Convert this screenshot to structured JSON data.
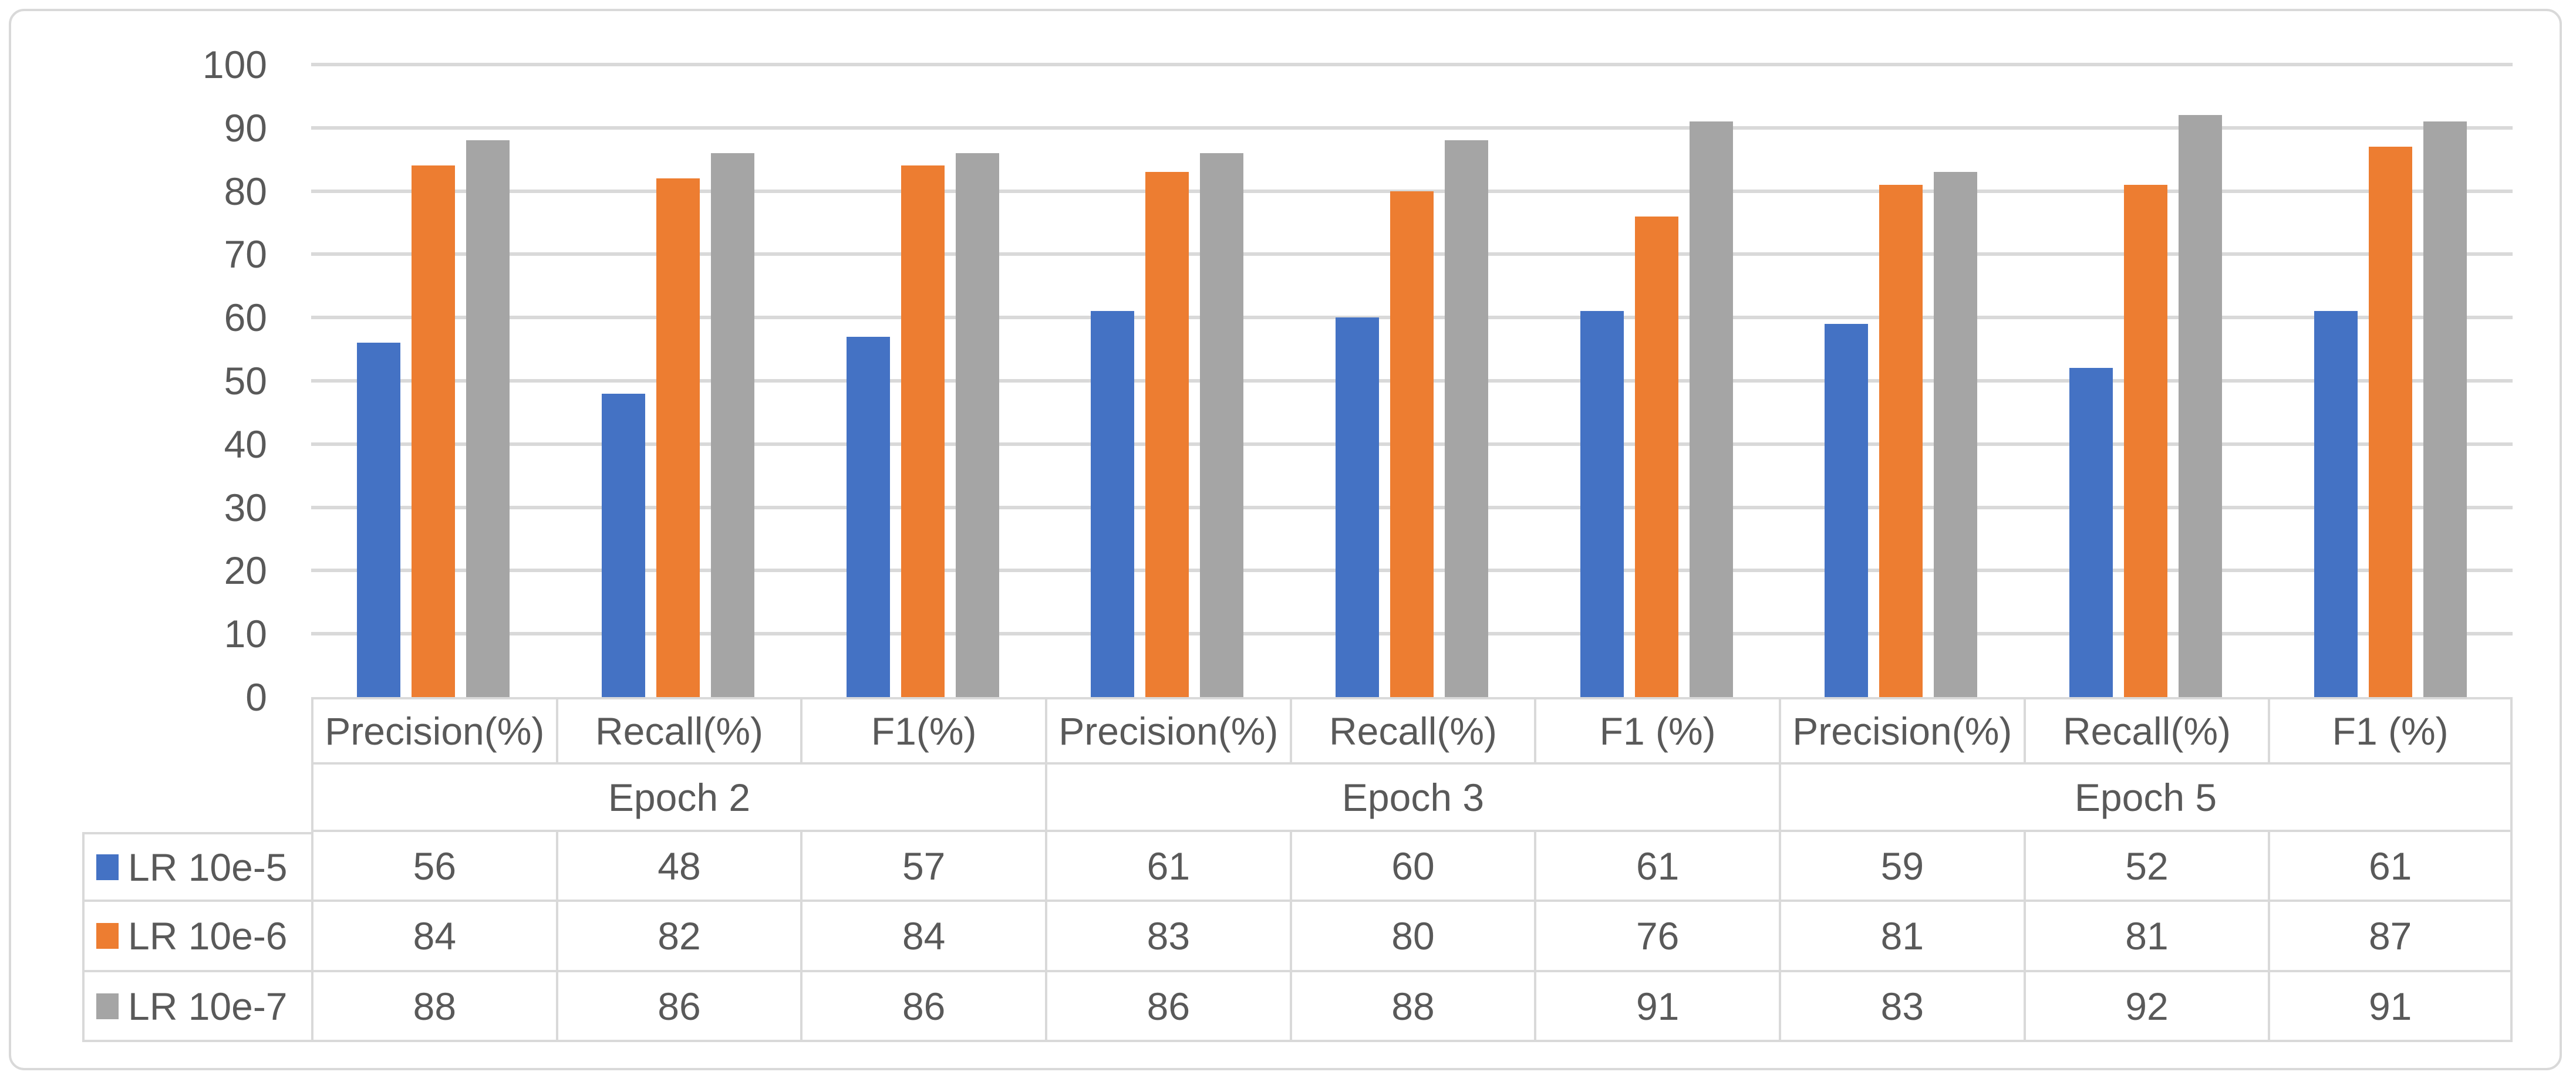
{
  "chart_data": {
    "type": "bar",
    "title": "",
    "xlabel": "",
    "ylabel": "",
    "y_axis": {
      "min": 0,
      "max": 100,
      "step": 10,
      "ticks": [
        0,
        10,
        20,
        30,
        40,
        50,
        60,
        70,
        80,
        90,
        100
      ]
    },
    "grid": true,
    "legend_position": "table-left-column",
    "epoch_groups": [
      {
        "label": "Epoch 2",
        "categories": [
          "Precision(%)",
          "Recall(%)",
          "F1(%)"
        ]
      },
      {
        "label": "Epoch 3",
        "categories": [
          "Precision(%)",
          "Recall(%)",
          "F1 (%)"
        ]
      },
      {
        "label": "Epoch 5",
        "categories": [
          "Precision(%)",
          "Recall(%)",
          "F1 (%)"
        ]
      }
    ],
    "series": [
      {
        "name": "LR 10e-5",
        "color": "#4472C4",
        "values": [
          56,
          48,
          57,
          61,
          60,
          61,
          59,
          52,
          61
        ]
      },
      {
        "name": "LR 10e-6",
        "color": "#ED7D31",
        "values": [
          84,
          82,
          84,
          83,
          80,
          76,
          81,
          81,
          87
        ]
      },
      {
        "name": "LR 10e-7",
        "color": "#A5A5A5",
        "values": [
          88,
          86,
          86,
          86,
          88,
          91,
          83,
          92,
          91
        ]
      }
    ]
  },
  "colors": {
    "grid": "#D9D9D9",
    "table_border": "#D9D9D9",
    "frame_border": "#D9D9D9",
    "text": "#595959",
    "background": "#FFFFFF"
  }
}
